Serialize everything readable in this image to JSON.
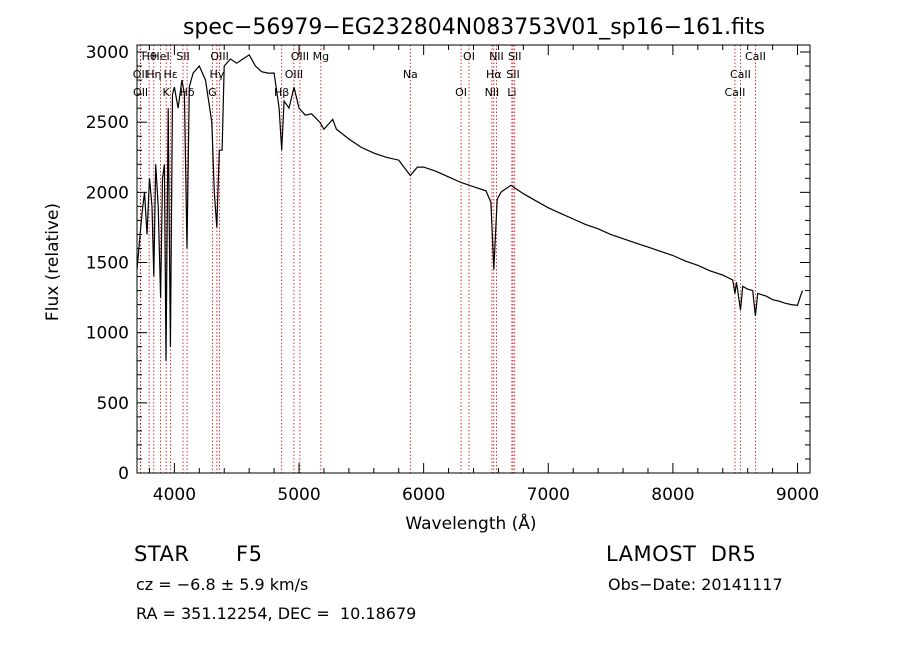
{
  "chart_data": {
    "type": "line",
    "title": "spec−56979−EG232804N083753V01_sp16−161.fits",
    "xlabel": "Wavelength (Å)",
    "ylabel": "Flux (relative)",
    "xlim": [
      3700,
      9100
    ],
    "ylim": [
      0,
      3050
    ],
    "x_ticks": [
      4000,
      5000,
      6000,
      7000,
      8000,
      9000
    ],
    "y_ticks": [
      0,
      500,
      1000,
      1500,
      2000,
      2500,
      3000
    ],
    "grid": false,
    "series": [
      {
        "x": [
          3700,
          3720,
          3740,
          3760,
          3780,
          3800,
          3820,
          3835,
          3850,
          3870,
          3889,
          3905,
          3920,
          3933,
          3950,
          3968,
          3985,
          4000,
          4030,
          4060,
          4080,
          4101,
          4120,
          4150,
          4200,
          4250,
          4300,
          4320,
          4340,
          4360,
          4383,
          4400,
          4450,
          4500,
          4550,
          4600,
          4650,
          4700,
          4750,
          4800,
          4840,
          4861,
          4880,
          4920,
          4960,
          5000,
          5050,
          5100,
          5167,
          5200,
          5270,
          5300,
          5400,
          5500,
          5600,
          5700,
          5800,
          5893,
          5950,
          6000,
          6100,
          6200,
          6300,
          6400,
          6500,
          6540,
          6563,
          6590,
          6620,
          6650,
          6700,
          6750,
          6800,
          6900,
          7000,
          7100,
          7200,
          7300,
          7400,
          7500,
          7600,
          7700,
          7800,
          7900,
          8000,
          8100,
          8200,
          8300,
          8400,
          8480,
          8498,
          8510,
          8542,
          8560,
          8600,
          8640,
          8662,
          8680,
          8750,
          8800,
          8850,
          8900,
          8950,
          9000,
          9020,
          9040
        ],
        "y": [
          1450,
          1650,
          1850,
          2000,
          1700,
          2100,
          1900,
          1400,
          2200,
          1900,
          1250,
          2100,
          2200,
          800,
          2600,
          900,
          2700,
          2750,
          2600,
          2800,
          2700,
          1600,
          2750,
          2850,
          2900,
          2800,
          2500,
          2000,
          1750,
          2300,
          2300,
          2900,
          2950,
          2920,
          2950,
          2980,
          2900,
          2860,
          2850,
          2850,
          2600,
          2300,
          2650,
          2600,
          2750,
          2600,
          2550,
          2560,
          2500,
          2450,
          2520,
          2450,
          2380,
          2320,
          2280,
          2250,
          2230,
          2120,
          2180,
          2180,
          2150,
          2110,
          2070,
          2040,
          2010,
          1930,
          1450,
          1950,
          2000,
          2020,
          2050,
          2020,
          1990,
          1940,
          1890,
          1850,
          1810,
          1770,
          1740,
          1700,
          1670,
          1640,
          1610,
          1580,
          1550,
          1510,
          1480,
          1440,
          1410,
          1375,
          1280,
          1360,
          1160,
          1330,
          1310,
          1300,
          1120,
          1280,
          1260,
          1235,
          1225,
          1210,
          1200,
          1195,
          1250,
          1300
        ]
      }
    ],
    "line_markers": [
      {
        "label": "Hθ",
        "x": 3797
      },
      {
        "label": "OII",
        "x": 3727
      },
      {
        "label": "OII",
        "x": 3729
      },
      {
        "label": "HeI",
        "x": 3889
      },
      {
        "label": "Hη",
        "x": 3835
      },
      {
        "label": "K",
        "x": 3934
      },
      {
        "label": "SII",
        "x": 4069
      },
      {
        "label": "Hε",
        "x": 3970
      },
      {
        "label": "Hδ",
        "x": 4102
      },
      {
        "label": "OIII",
        "x": 4363
      },
      {
        "label": "Hγ",
        "x": 4341
      },
      {
        "label": "G",
        "x": 4305
      },
      {
        "label": "OIII",
        "x": 5007
      },
      {
        "label": "OIII",
        "x": 4959
      },
      {
        "label": "Hβ",
        "x": 4861
      },
      {
        "label": "Mg",
        "x": 5175
      },
      {
        "label": "Na",
        "x": 5893
      },
      {
        "label": "OI",
        "x": 6300
      },
      {
        "label": "OI",
        "x": 6364
      },
      {
        "label": "Hα",
        "x": 6563
      },
      {
        "label": "NII",
        "x": 6548
      },
      {
        "label": "NII",
        "x": 6584
      },
      {
        "label": "SII",
        "x": 6717
      },
      {
        "label": "Li",
        "x": 6708
      },
      {
        "label": "SII",
        "x": 6731
      },
      {
        "label": "CaII",
        "x": 8542
      },
      {
        "label": "CaII",
        "x": 8498
      },
      {
        "label": "CaII",
        "x": 8662
      }
    ]
  },
  "info": {
    "class_label": "STAR",
    "subclass_label": "F5",
    "survey": "LAMOST  DR5",
    "cz_text": "cz = −6.8 ± 5.9 km/s",
    "obs_date": "Obs−Date: 20141117",
    "radec_text": "RA = 351.12254, DEC =  10.18679"
  },
  "colors": {
    "spectrum": "#000000",
    "marker_line": "#cc0000",
    "axis": "#000000"
  }
}
